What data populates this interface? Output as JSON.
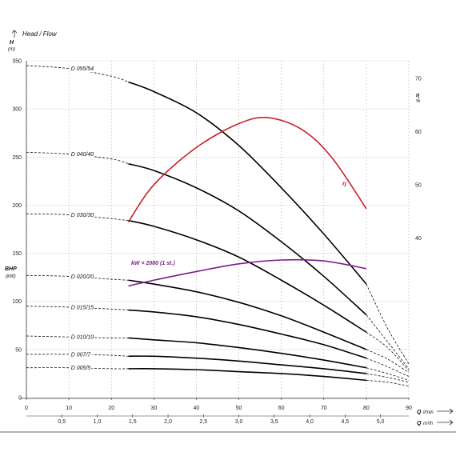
{
  "chart_data": {
    "type": "line",
    "title": "Head / Flow",
    "y_left": {
      "label": "H",
      "unit": "(m)",
      "range": [
        0,
        350
      ],
      "ticks": [
        0,
        50,
        100,
        150,
        200,
        250,
        300,
        350
      ]
    },
    "y_left_power": {
      "label": "BHP",
      "unit": "(kW)"
    },
    "y_right": {
      "label": "η",
      "unit": "%",
      "range": [
        10,
        73.3
      ],
      "ticks": [
        40,
        50,
        60,
        70
      ]
    },
    "x_primary": {
      "label": "Q",
      "unit": "l/min",
      "range": [
        0,
        90
      ],
      "ticks": [
        0,
        10,
        20,
        30,
        40,
        50,
        60,
        70,
        80,
        90
      ]
    },
    "x_secondary": {
      "label": "Q",
      "unit": "m³/h",
      "ticks": [
        "0,5",
        "1,0",
        "1,5",
        "2,0",
        "2,5",
        "3,0",
        "3,5",
        "4,0",
        "4,5",
        "5,0"
      ],
      "tick_values": [
        0.5,
        1.0,
        1.5,
        2.0,
        2.5,
        3.0,
        3.5,
        4.0,
        4.5,
        5.0
      ]
    },
    "grid": true,
    "operating_range": [
      24,
      80
    ],
    "series": [
      {
        "name": "D 055/54",
        "H0": 345,
        "points": [
          [
            0,
            345
          ],
          [
            10,
            342
          ],
          [
            20,
            334
          ],
          [
            24,
            328
          ],
          [
            30,
            318
          ],
          [
            40,
            296
          ],
          [
            50,
            262
          ],
          [
            60,
            218
          ],
          [
            70,
            170
          ],
          [
            80,
            118
          ],
          [
            85,
            72
          ],
          [
            90,
            35
          ]
        ]
      },
      {
        "name": "D 040/40",
        "H0": 255,
        "points": [
          [
            0,
            255
          ],
          [
            10,
            253
          ],
          [
            20,
            248
          ],
          [
            24,
            243
          ],
          [
            30,
            236
          ],
          [
            40,
            218
          ],
          [
            50,
            194
          ],
          [
            60,
            162
          ],
          [
            70,
            126
          ],
          [
            80,
            86
          ],
          [
            85,
            58
          ],
          [
            90,
            30
          ]
        ]
      },
      {
        "name": "D 030/30",
        "H0": 191,
        "points": [
          [
            0,
            191
          ],
          [
            10,
            190
          ],
          [
            20,
            186
          ],
          [
            24,
            184
          ],
          [
            30,
            178
          ],
          [
            40,
            164
          ],
          [
            50,
            146
          ],
          [
            60,
            122
          ],
          [
            70,
            96
          ],
          [
            80,
            68
          ],
          [
            85,
            52
          ],
          [
            90,
            28
          ]
        ]
      },
      {
        "name": "D 020/20",
        "H0": 127,
        "points": [
          [
            0,
            127
          ],
          [
            10,
            126
          ],
          [
            20,
            123
          ],
          [
            24,
            122
          ],
          [
            30,
            118
          ],
          [
            40,
            110
          ],
          [
            50,
            99
          ],
          [
            60,
            85
          ],
          [
            70,
            68
          ],
          [
            80,
            50
          ],
          [
            85,
            40
          ],
          [
            90,
            26
          ]
        ]
      },
      {
        "name": "D 015/15",
        "H0": 95,
        "points": [
          [
            0,
            95
          ],
          [
            10,
            94
          ],
          [
            20,
            92
          ],
          [
            24,
            91
          ],
          [
            30,
            89
          ],
          [
            40,
            84
          ],
          [
            50,
            76
          ],
          [
            60,
            66
          ],
          [
            70,
            55
          ],
          [
            80,
            41
          ],
          [
            85,
            32
          ],
          [
            90,
            22
          ]
        ]
      },
      {
        "name": "D 010/10",
        "H0": 64,
        "points": [
          [
            0,
            64
          ],
          [
            10,
            63
          ],
          [
            20,
            62
          ],
          [
            24,
            62
          ],
          [
            30,
            60
          ],
          [
            40,
            57
          ],
          [
            50,
            52
          ],
          [
            60,
            46
          ],
          [
            70,
            39
          ],
          [
            80,
            31
          ],
          [
            85,
            25
          ],
          [
            90,
            18
          ]
        ]
      },
      {
        "name": "D 007/7",
        "H0": 45,
        "points": [
          [
            0,
            45
          ],
          [
            10,
            45
          ],
          [
            20,
            44
          ],
          [
            24,
            43
          ],
          [
            30,
            43
          ],
          [
            40,
            41
          ],
          [
            50,
            38
          ],
          [
            60,
            34
          ],
          [
            70,
            30
          ],
          [
            80,
            25
          ],
          [
            85,
            21
          ],
          [
            90,
            16
          ]
        ]
      },
      {
        "name": "D 005/5",
        "H0": 31,
        "points": [
          [
            0,
            31
          ],
          [
            10,
            31
          ],
          [
            20,
            30
          ],
          [
            24,
            30
          ],
          [
            30,
            30
          ],
          [
            40,
            29
          ],
          [
            50,
            27
          ],
          [
            60,
            25
          ],
          [
            70,
            22
          ],
          [
            80,
            18
          ],
          [
            85,
            16
          ],
          [
            90,
            12
          ]
        ]
      }
    ],
    "efficiency": {
      "label": "η",
      "color": "#c8202a",
      "points": [
        [
          24,
          43
        ],
        [
          30,
          50
        ],
        [
          40,
          57
        ],
        [
          50,
          61.5
        ],
        [
          57,
          62.6
        ],
        [
          65,
          60.3
        ],
        [
          72,
          55
        ],
        [
          80,
          45.5
        ]
      ]
    },
    "power": {
      "label": "kW × 2000 (1 st.)",
      "color": "#7a1e8a",
      "points": [
        [
          24,
          116
        ],
        [
          30,
          122
        ],
        [
          40,
          131
        ],
        [
          50,
          139
        ],
        [
          60,
          143
        ],
        [
          70,
          142
        ],
        [
          80,
          134
        ]
      ]
    }
  }
}
